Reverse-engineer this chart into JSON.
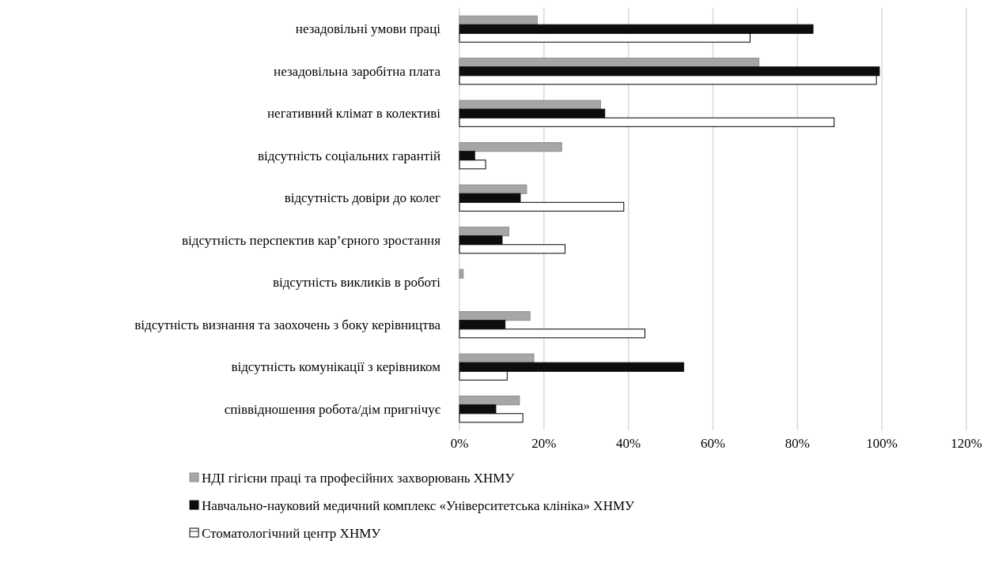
{
  "chart_data": {
    "type": "bar",
    "orientation": "horizontal",
    "categories": [
      "незадовільні умови праці",
      "незадовільна заробітна плата",
      "негативний клімат в колективі",
      "відсутність соціальних гарантій",
      "відсутність довіри до колег",
      "відсутність перспектив кар’єрного зростання",
      "відсутність викликів в роботі",
      "відсутність визнання та заохочень з боку керівництва",
      "відсутність комунікації з керівником",
      "співвідношення робота/дім пригнічує"
    ],
    "series": [
      {
        "name": "НДІ гігієни праці та професійних захворювань ХНМУ",
        "color": "#a6a6a6",
        "values": [
          18.4,
          70.9,
          33.4,
          24.2,
          15.9,
          11.7,
          0.9,
          16.7,
          17.6,
          14.2
        ]
      },
      {
        "name": "Навчально-науковий медичний комплекс «Університетська клініка» ХНМУ",
        "color": "#0d0d0d",
        "values": [
          83.7,
          99.4,
          34.4,
          3.6,
          14.4,
          10.1,
          0,
          10.8,
          53.1,
          8.6
        ]
      },
      {
        "name": "Стоматологічний центр ХНМУ",
        "color": "#ffffff",
        "values": [
          68.8,
          98.7,
          88.7,
          6.2,
          38.9,
          25.0,
          0,
          43.9,
          11.3,
          15.0
        ]
      }
    ],
    "xlim": [
      0,
      120
    ],
    "xticks": [
      {
        "value": 0,
        "label": "0%"
      },
      {
        "value": 20,
        "label": "20%"
      },
      {
        "value": 40,
        "label": "40%"
      },
      {
        "value": 60,
        "label": "60%"
      },
      {
        "value": 80,
        "label": "80%"
      },
      {
        "value": 100,
        "label": "100%"
      },
      {
        "value": 120,
        "label": "120%"
      }
    ],
    "grid": "x",
    "legend": "bottom"
  }
}
